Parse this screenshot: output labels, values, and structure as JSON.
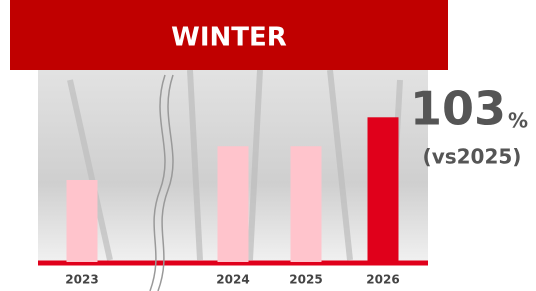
{
  "chart_data": {
    "type": "bar",
    "title": "WINTER",
    "categories": [
      "2023",
      "2024",
      "2025",
      "2026"
    ],
    "series": [
      {
        "name": null,
        "colors": [
          "#ffc4cc",
          "#ffc4cc",
          "#ffc4cc",
          "#e0001b"
        ],
        "values": [
          96.5,
          100,
          100,
          103
        ]
      }
    ],
    "ylim": [
      88,
      105
    ],
    "annotation": {
      "value": "103",
      "unit": "%",
      "note": "(vs2025)"
    }
  }
}
